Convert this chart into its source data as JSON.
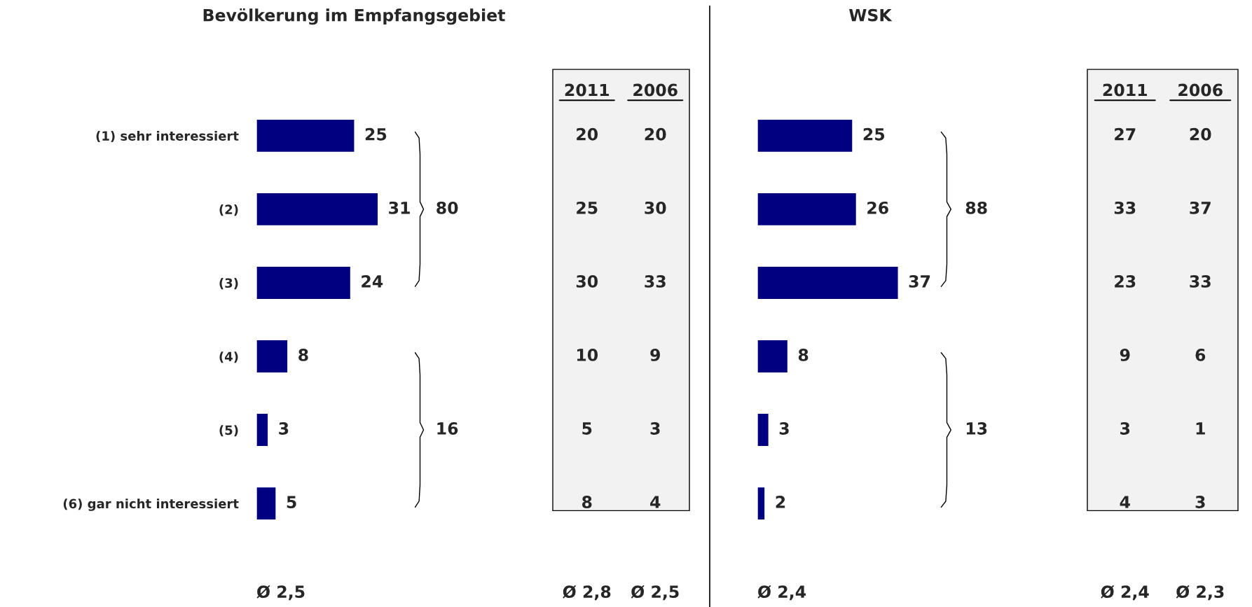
{
  "chart_data": [
    {
      "type": "bar",
      "orientation": "horizontal",
      "title": "Bevölkerung im Empfangsgebiet",
      "categories": [
        "(1) sehr interessiert",
        "(2)",
        "(3)",
        "(4)",
        "(5)",
        "(6) gar nicht interessiert"
      ],
      "values": [
        25,
        31,
        24,
        8,
        3,
        5
      ],
      "color": "#000080",
      "data_labels": true,
      "tick_labels": "y",
      "annotations": [
        "80",
        "16",
        "Ø 2,5"
      ]
    },
    {
      "type": "other",
      "annotations": [
        "2011",
        "2006",
        "20",
        "20",
        "25",
        "30",
        "30",
        "33",
        "10",
        "9",
        "5",
        "3",
        "8",
        "4",
        "Ø 2,8",
        "Ø 2,5"
      ]
    },
    {
      "type": "bar",
      "orientation": "horizontal",
      "title": "WSK",
      "categories": [
        null,
        null,
        null,
        null,
        null,
        null
      ],
      "values": [
        25,
        26,
        37,
        8,
        3,
        2
      ],
      "color": "#000080",
      "data_labels": true,
      "tick_labels": false,
      "annotations": [
        "88",
        "13",
        "Ø 2,4"
      ]
    },
    {
      "type": "other",
      "annotations": [
        "2011",
        "2006",
        "27",
        "20",
        "33",
        "37",
        "23",
        "33",
        "9",
        "6",
        "3",
        "1",
        "4",
        "3",
        "Ø 2,4",
        "Ø 2,3"
      ]
    }
  ]
}
